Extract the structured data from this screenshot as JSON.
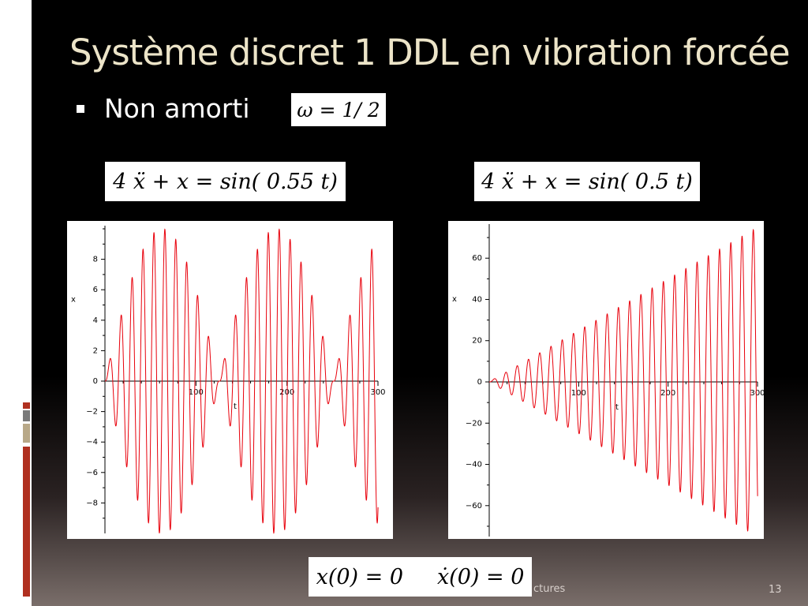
{
  "slide": {
    "title": "Système discret  1 DDL en vibration forcée",
    "bullet": "Non amorti",
    "omega_eq": "ω = 1/ 2",
    "initial_conditions": "x(0) = 0     ẋ(0) = 0",
    "footer_text": "ctures",
    "page_number": "13"
  },
  "colors": {
    "background": "#000000",
    "title": "#ece4c8",
    "curve": "#e8000b",
    "accents": [
      "#b03020",
      "#7a7a7a",
      "#b8a888",
      "#b03020"
    ]
  },
  "chart_data": [
    {
      "type": "line",
      "equation_label": "4 ẍ + x = sin( 0.55 t)",
      "xlabel": "t",
      "ylabel": "x",
      "xlim": [
        0,
        300
      ],
      "ylim": [
        -10,
        10
      ],
      "xticks": [
        100,
        200,
        300
      ],
      "yticks": [
        -8,
        -6,
        -4,
        -2,
        0,
        2,
        4,
        6,
        8
      ],
      "grid": false,
      "series": [
        {
          "equation": {
            "m": 4,
            "k": 1,
            "forcing_omega": 0.55
          },
          "x0": 0,
          "v0": 0,
          "t_range": [
            0,
            300
          ]
        }
      ]
    },
    {
      "type": "line",
      "equation_label": "4 ẍ + x = sin( 0.5 t)",
      "xlabel": "t",
      "ylabel": "x",
      "xlim": [
        0,
        300
      ],
      "ylim": [
        -75,
        75
      ],
      "xticks": [
        100,
        200,
        300
      ],
      "yticks": [
        -60,
        -40,
        -20,
        0,
        20,
        40,
        60
      ],
      "grid": false,
      "series": [
        {
          "equation": {
            "m": 4,
            "k": 1,
            "forcing_omega": 0.5
          },
          "x0": 0,
          "v0": 0,
          "t_range": [
            0,
            300
          ]
        }
      ]
    }
  ]
}
